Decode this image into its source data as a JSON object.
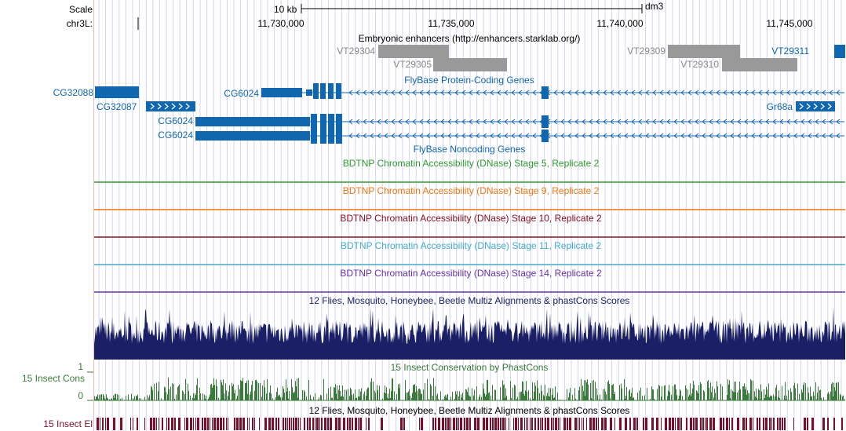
{
  "ruler": {
    "scale_label": "Scale",
    "chrom_label": "chr3L:",
    "scale_bar_text": "10 kb",
    "assembly": "dm3",
    "positions": [
      "11,730,000",
      "11,735,000",
      "11,740,000",
      "11,745,000"
    ]
  },
  "tracks": {
    "enhancers": {
      "title": "Embryonic enhancers (http://enhancers.starklab.org/)",
      "items": [
        "VT29304",
        "VT29305",
        "VT29309",
        "VT29310",
        "VT29311"
      ]
    },
    "flybase_coding": {
      "title": "FlyBase Protein-Coding Genes",
      "genes": [
        "CG32088",
        "CG32087",
        "CG6024",
        "CG6024",
        "CG6024",
        "Gr68a"
      ]
    },
    "flybase_noncoding": {
      "title": "FlyBase Noncoding Genes"
    },
    "dnase": [
      {
        "title": "BDTNP Chromatin Accessibility (DNase) Stage 5, Replicate 2",
        "color": "#339933"
      },
      {
        "title": "BDTNP Chromatin Accessibility (DNase) Stage 9, Replicate 2",
        "color": "#ee7711"
      },
      {
        "title": "BDTNP Chromatin Accessibility (DNase) Stage 10, Replicate 2",
        "color": "#881122"
      },
      {
        "title": "BDTNP Chromatin Accessibility (DNase) Stage 11, Replicate 2",
        "color": "#44aacc"
      },
      {
        "title": "BDTNP Chromatin Accessibility (DNase) Stage 14, Replicate 2",
        "color": "#6633aa"
      }
    ],
    "multiz": {
      "title": "12 Flies, Mosquito, Honeybee, Beetle Multiz Alignments & phastCons Scores"
    },
    "insect_cons": {
      "left_label": "15 Insect Cons",
      "axis_top": "1",
      "axis_bottom": "0",
      "title": "15 Insect Conservation by PhastCons"
    },
    "insect_el": {
      "left_label": "15 Insect El",
      "title": "12 Flies, Mosquito, Honeybee, Beetle Multiz Alignments & phastCons Scores"
    }
  },
  "colors": {
    "gene_blue": "#1166b0",
    "enhancer_gray": "#999999",
    "enhancer_label": "#888888",
    "multiz_navy": "#1a1f66",
    "cons_green": "#3a7a3a",
    "el_maroon": "#7a0f2a",
    "grid": "#d4d4ee",
    "guide": "#f0b8b8"
  }
}
